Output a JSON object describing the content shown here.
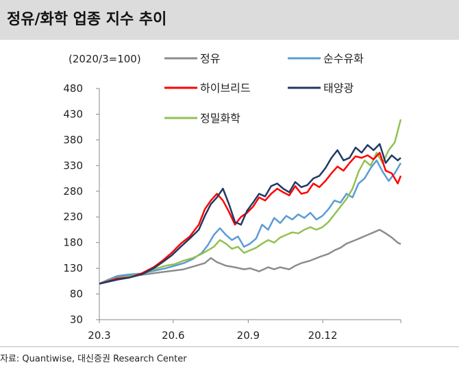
{
  "title": "정유/화학 업종 지수 추이",
  "source": "자료: Quantiwise, 대신증권 Research Center",
  "chart_data": {
    "type": "line",
    "unit_note": "(2020/3=100)",
    "ylim": [
      30,
      480
    ],
    "yticks": [
      480,
      430,
      380,
      330,
      280,
      230,
      180,
      130,
      80,
      30
    ],
    "xticks": [
      {
        "label": "20.3",
        "t": 0
      },
      {
        "label": "20.6",
        "t": 0.245
      },
      {
        "label": "20.9",
        "t": 0.494
      },
      {
        "label": "20.12",
        "t": 0.741
      }
    ],
    "grid": false,
    "legend": [
      {
        "name": "정유",
        "color": "#8c8c8c"
      },
      {
        "name": "순수유화",
        "color": "#5b9bd5"
      },
      {
        "name": "하이브리드",
        "color": "#ff0000"
      },
      {
        "name": "태양광",
        "color": "#1f3864"
      },
      {
        "name": "정밀화학",
        "color": "#92c050"
      }
    ],
    "series": [
      {
        "name": "정유",
        "color": "#8c8c8c",
        "width": 2.5,
        "points": [
          [
            0,
            100
          ],
          [
            0.03,
            108
          ],
          [
            0.06,
            112
          ],
          [
            0.1,
            115
          ],
          [
            0.15,
            118
          ],
          [
            0.2,
            122
          ],
          [
            0.24,
            125
          ],
          [
            0.28,
            128
          ],
          [
            0.32,
            135
          ],
          [
            0.35,
            140
          ],
          [
            0.37,
            150
          ],
          [
            0.39,
            142
          ],
          [
            0.42,
            135
          ],
          [
            0.45,
            132
          ],
          [
            0.48,
            128
          ],
          [
            0.5,
            130
          ],
          [
            0.53,
            124
          ],
          [
            0.56,
            132
          ],
          [
            0.58,
            128
          ],
          [
            0.6,
            132
          ],
          [
            0.63,
            128
          ],
          [
            0.65,
            135
          ],
          [
            0.67,
            140
          ],
          [
            0.7,
            145
          ],
          [
            0.73,
            152
          ],
          [
            0.76,
            158
          ],
          [
            0.78,
            165
          ],
          [
            0.8,
            170
          ],
          [
            0.82,
            178
          ],
          [
            0.85,
            185
          ],
          [
            0.87,
            190
          ],
          [
            0.89,
            195
          ],
          [
            0.91,
            200
          ],
          [
            0.93,
            205
          ],
          [
            0.95,
            198
          ],
          [
            0.97,
            190
          ],
          [
            0.99,
            180
          ],
          [
            1,
            177
          ]
        ]
      },
      {
        "name": "순수유화",
        "color": "#5b9bd5",
        "width": 2.5,
        "points": [
          [
            0,
            100
          ],
          [
            0.03,
            108
          ],
          [
            0.06,
            115
          ],
          [
            0.1,
            118
          ],
          [
            0.14,
            120
          ],
          [
            0.18,
            125
          ],
          [
            0.22,
            130
          ],
          [
            0.25,
            135
          ],
          [
            0.28,
            140
          ],
          [
            0.31,
            148
          ],
          [
            0.34,
            160
          ],
          [
            0.36,
            175
          ],
          [
            0.38,
            195
          ],
          [
            0.4,
            208
          ],
          [
            0.42,
            195
          ],
          [
            0.44,
            185
          ],
          [
            0.46,
            192
          ],
          [
            0.48,
            172
          ],
          [
            0.5,
            178
          ],
          [
            0.52,
            188
          ],
          [
            0.54,
            215
          ],
          [
            0.56,
            205
          ],
          [
            0.58,
            228
          ],
          [
            0.6,
            218
          ],
          [
            0.62,
            232
          ],
          [
            0.64,
            225
          ],
          [
            0.66,
            235
          ],
          [
            0.68,
            228
          ],
          [
            0.7,
            238
          ],
          [
            0.72,
            225
          ],
          [
            0.74,
            232
          ],
          [
            0.76,
            245
          ],
          [
            0.78,
            262
          ],
          [
            0.8,
            258
          ],
          [
            0.82,
            275
          ],
          [
            0.84,
            268
          ],
          [
            0.86,
            295
          ],
          [
            0.88,
            305
          ],
          [
            0.9,
            325
          ],
          [
            0.92,
            340
          ],
          [
            0.94,
            318
          ],
          [
            0.96,
            300
          ],
          [
            0.98,
            315
          ],
          [
            1,
            335
          ]
        ]
      },
      {
        "name": "하이브리드",
        "color": "#ff0000",
        "width": 2.5,
        "points": [
          [
            0,
            100
          ],
          [
            0.03,
            105
          ],
          [
            0.06,
            110
          ],
          [
            0.1,
            112
          ],
          [
            0.14,
            120
          ],
          [
            0.18,
            132
          ],
          [
            0.21,
            145
          ],
          [
            0.24,
            160
          ],
          [
            0.27,
            178
          ],
          [
            0.3,
            192
          ],
          [
            0.33,
            215
          ],
          [
            0.35,
            245
          ],
          [
            0.37,
            262
          ],
          [
            0.39,
            275
          ],
          [
            0.41,
            262
          ],
          [
            0.43,
            240
          ],
          [
            0.45,
            215
          ],
          [
            0.47,
            230
          ],
          [
            0.49,
            238
          ],
          [
            0.51,
            250
          ],
          [
            0.53,
            268
          ],
          [
            0.55,
            262
          ],
          [
            0.57,
            275
          ],
          [
            0.59,
            285
          ],
          [
            0.61,
            278
          ],
          [
            0.63,
            272
          ],
          [
            0.65,
            290
          ],
          [
            0.67,
            275
          ],
          [
            0.69,
            278
          ],
          [
            0.71,
            295
          ],
          [
            0.73,
            288
          ],
          [
            0.75,
            300
          ],
          [
            0.77,
            315
          ],
          [
            0.79,
            328
          ],
          [
            0.81,
            320
          ],
          [
            0.83,
            335
          ],
          [
            0.85,
            348
          ],
          [
            0.87,
            345
          ],
          [
            0.89,
            350
          ],
          [
            0.91,
            342
          ],
          [
            0.93,
            355
          ],
          [
            0.95,
            320
          ],
          [
            0.97,
            315
          ],
          [
            0.99,
            295
          ],
          [
            1,
            310
          ]
        ]
      },
      {
        "name": "태양광",
        "color": "#1f3864",
        "width": 2.5,
        "points": [
          [
            0,
            100
          ],
          [
            0.03,
            104
          ],
          [
            0.06,
            108
          ],
          [
            0.1,
            112
          ],
          [
            0.14,
            118
          ],
          [
            0.18,
            130
          ],
          [
            0.21,
            142
          ],
          [
            0.24,
            155
          ],
          [
            0.27,
            172
          ],
          [
            0.3,
            188
          ],
          [
            0.33,
            205
          ],
          [
            0.35,
            232
          ],
          [
            0.37,
            255
          ],
          [
            0.39,
            268
          ],
          [
            0.41,
            285
          ],
          [
            0.43,
            255
          ],
          [
            0.45,
            220
          ],
          [
            0.47,
            215
          ],
          [
            0.49,
            242
          ],
          [
            0.51,
            258
          ],
          [
            0.53,
            275
          ],
          [
            0.55,
            270
          ],
          [
            0.57,
            290
          ],
          [
            0.59,
            295
          ],
          [
            0.61,
            285
          ],
          [
            0.63,
            278
          ],
          [
            0.65,
            298
          ],
          [
            0.67,
            288
          ],
          [
            0.69,
            292
          ],
          [
            0.71,
            305
          ],
          [
            0.73,
            310
          ],
          [
            0.75,
            325
          ],
          [
            0.77,
            345
          ],
          [
            0.79,
            360
          ],
          [
            0.81,
            340
          ],
          [
            0.83,
            345
          ],
          [
            0.85,
            365
          ],
          [
            0.87,
            355
          ],
          [
            0.89,
            370
          ],
          [
            0.91,
            360
          ],
          [
            0.93,
            372
          ],
          [
            0.95,
            335
          ],
          [
            0.97,
            350
          ],
          [
            0.99,
            340
          ],
          [
            1,
            345
          ]
        ]
      },
      {
        "name": "정밀화학",
        "color": "#92c050",
        "width": 2.5,
        "points": [
          [
            0,
            100
          ],
          [
            0.03,
            106
          ],
          [
            0.06,
            110
          ],
          [
            0.1,
            114
          ],
          [
            0.14,
            120
          ],
          [
            0.18,
            128
          ],
          [
            0.22,
            135
          ],
          [
            0.25,
            138
          ],
          [
            0.28,
            145
          ],
          [
            0.31,
            150
          ],
          [
            0.34,
            158
          ],
          [
            0.36,
            165
          ],
          [
            0.38,
            172
          ],
          [
            0.4,
            185
          ],
          [
            0.42,
            178
          ],
          [
            0.44,
            168
          ],
          [
            0.46,
            172
          ],
          [
            0.48,
            160
          ],
          [
            0.5,
            165
          ],
          [
            0.52,
            170
          ],
          [
            0.54,
            178
          ],
          [
            0.56,
            185
          ],
          [
            0.58,
            180
          ],
          [
            0.6,
            190
          ],
          [
            0.62,
            195
          ],
          [
            0.64,
            200
          ],
          [
            0.66,
            198
          ],
          [
            0.68,
            205
          ],
          [
            0.7,
            210
          ],
          [
            0.72,
            205
          ],
          [
            0.74,
            210
          ],
          [
            0.76,
            220
          ],
          [
            0.78,
            235
          ],
          [
            0.8,
            250
          ],
          [
            0.82,
            265
          ],
          [
            0.84,
            285
          ],
          [
            0.86,
            318
          ],
          [
            0.88,
            340
          ],
          [
            0.9,
            330
          ],
          [
            0.92,
            355
          ],
          [
            0.94,
            335
          ],
          [
            0.96,
            360
          ],
          [
            0.98,
            375
          ],
          [
            1,
            420
          ]
        ]
      }
    ]
  }
}
